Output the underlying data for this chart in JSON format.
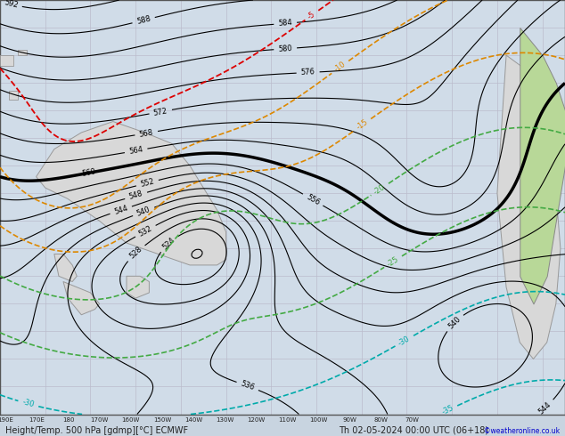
{
  "title_bottom": "Height/Temp. 500 hPa [gdmp][°C] ECMWF",
  "date_str": "Th 02-05-2024 00:00 UTC (06+18)",
  "copyright": "©weatheronline.co.uk",
  "bg_color": "#d0dce8",
  "land_color": "#d8d8d8",
  "land_color_right": "#b8d898",
  "grid_color": "#bbbbcc",
  "fig_bg": "#c8d4e0",
  "bottom_bar_color": "#b0bece",
  "bottom_text_color": "#222222",
  "contour_black_color": "#000000",
  "contour_red_color": "#dd0000",
  "contour_orange_color": "#dd8800",
  "contour_green_color": "#44aa44",
  "contour_teal_color": "#00aaaa",
  "contour_blue_color": "#2244dd",
  "footer_fontsize": 7,
  "title_fontsize": 8
}
